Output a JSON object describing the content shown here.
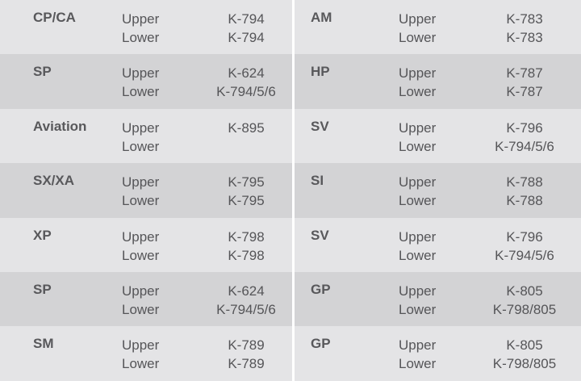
{
  "left": [
    {
      "label": "CP/CA",
      "upper": "Upper",
      "lower": "Lower",
      "upper_code": "K-794",
      "lower_code": "K-794",
      "shade": "light"
    },
    {
      "label": "SP",
      "upper": "Upper",
      "lower": "Lower",
      "upper_code": "K-624",
      "lower_code": "K-794/5/6",
      "shade": "dark"
    },
    {
      "label": "Aviation",
      "upper": "Upper",
      "lower": "Lower",
      "upper_code": "K-895",
      "lower_code": "",
      "shade": "light"
    },
    {
      "label": "SX/XA",
      "upper": "Upper",
      "lower": "Lower",
      "upper_code": "K-795",
      "lower_code": "K-795",
      "shade": "dark"
    },
    {
      "label": "XP",
      "upper": "Upper",
      "lower": "Lower",
      "upper_code": "K-798",
      "lower_code": "K-798",
      "shade": "light"
    },
    {
      "label": "SP",
      "upper": "Upper",
      "lower": "Lower",
      "upper_code": "K-624",
      "lower_code": "K-794/5/6",
      "shade": "dark"
    },
    {
      "label": "SM",
      "upper": "Upper",
      "lower": "Lower",
      "upper_code": "K-789",
      "lower_code": "K-789",
      "shade": "light"
    }
  ],
  "right": [
    {
      "label": "AM",
      "upper": "Upper",
      "lower": "Lower",
      "upper_code": "K-783",
      "lower_code": "K-783",
      "shade": "light"
    },
    {
      "label": "HP",
      "upper": "Upper",
      "lower": "Lower",
      "upper_code": "K-787",
      "lower_code": "K-787",
      "shade": "dark"
    },
    {
      "label": "SV",
      "upper": "Upper",
      "lower": "Lower",
      "upper_code": "K-796",
      "lower_code": "K-794/5/6",
      "shade": "light"
    },
    {
      "label": "SI",
      "upper": "Upper",
      "lower": "Lower",
      "upper_code": "K-788",
      "lower_code": "K-788",
      "shade": "dark"
    },
    {
      "label": "SV",
      "upper": "Upper",
      "lower": "Lower",
      "upper_code": "K-796",
      "lower_code": "K-794/5/6",
      "shade": "light"
    },
    {
      "label": "GP",
      "upper": "Upper",
      "lower": "Lower",
      "upper_code": "K-805",
      "lower_code": "K-798/805",
      "shade": "dark"
    },
    {
      "label": "GP",
      "upper": "Upper",
      "lower": "Lower",
      "upper_code": "K-805",
      "lower_code": "K-798/805",
      "shade": "light"
    }
  ],
  "colors": {
    "light_row": "#e4e4e6",
    "dark_row": "#d3d3d5",
    "text": "#555558",
    "divider": "#ffffff"
  }
}
